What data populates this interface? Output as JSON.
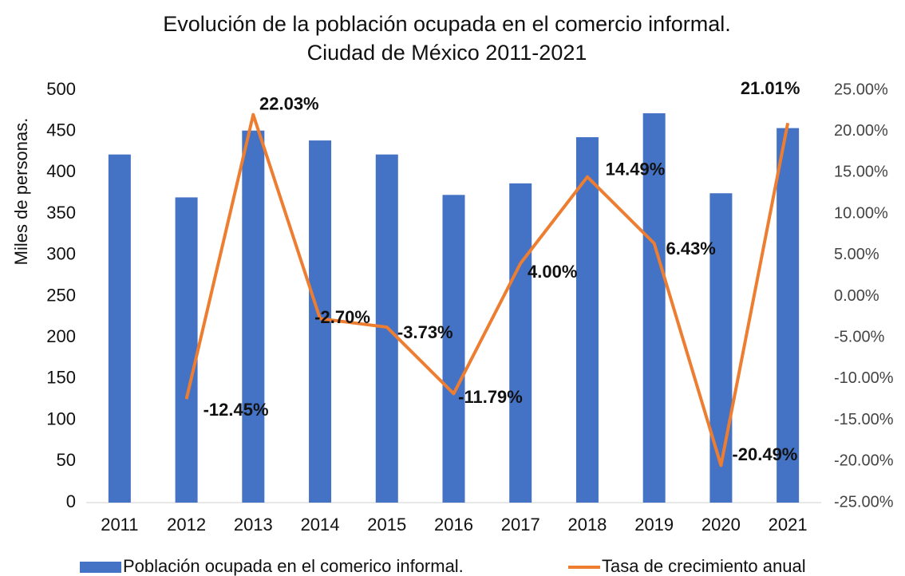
{
  "chart_data": {
    "type": "bar_line",
    "title": "Evolución de la población ocupada en el comercio informal.",
    "subtitle": "Ciudad de México 2011-2021",
    "y_label": "Miles de personas.",
    "categories": [
      "2011",
      "2012",
      "2013",
      "2014",
      "2015",
      "2016",
      "2017",
      "2018",
      "2019",
      "2020",
      "2021"
    ],
    "series": [
      {
        "name": "Población ocupada en el comerico informal.",
        "color": "#4472c4",
        "type": "bar",
        "values": [
          422,
          370,
          451,
          439,
          422,
          373,
          387,
          443,
          472,
          375,
          454
        ]
      },
      {
        "name": "Tasa de crecimiento anual",
        "color": "#ed7d31",
        "type": "line",
        "axis": "y2",
        "values": [
          null,
          -12.45,
          22.03,
          -2.7,
          -3.73,
          -11.79,
          4.0,
          14.49,
          6.43,
          -20.49,
          21.01
        ],
        "value_labels": [
          null,
          "-12.45%",
          "22.03%",
          "-2.70%",
          "-3.73%",
          "-11.79%",
          "4.00%",
          "14.49%",
          "6.43%",
          "-20.49%",
          "21.01%"
        ]
      }
    ],
    "ylim": [
      0,
      500
    ],
    "yticks": [
      0,
      50,
      100,
      150,
      200,
      250,
      300,
      350,
      400,
      450,
      500
    ],
    "y2lim": [
      -25,
      25
    ],
    "y2ticks": [
      {
        "value": -25,
        "label": "-25.00%"
      },
      {
        "value": -20,
        "label": "-20.00%"
      },
      {
        "value": -15,
        "label": "-15.00%"
      },
      {
        "value": -10,
        "label": "-10.00%"
      },
      {
        "value": -5,
        "label": "-5.00%"
      },
      {
        "value": 0,
        "label": "0.00%"
      },
      {
        "value": 5,
        "label": "5.00%"
      },
      {
        "value": 10,
        "label": "10.00%"
      },
      {
        "value": 15,
        "label": "15.00%"
      },
      {
        "value": 20,
        "label": "20.00%"
      },
      {
        "value": 25,
        "label": "25.00%"
      }
    ],
    "legend": "bottom"
  }
}
